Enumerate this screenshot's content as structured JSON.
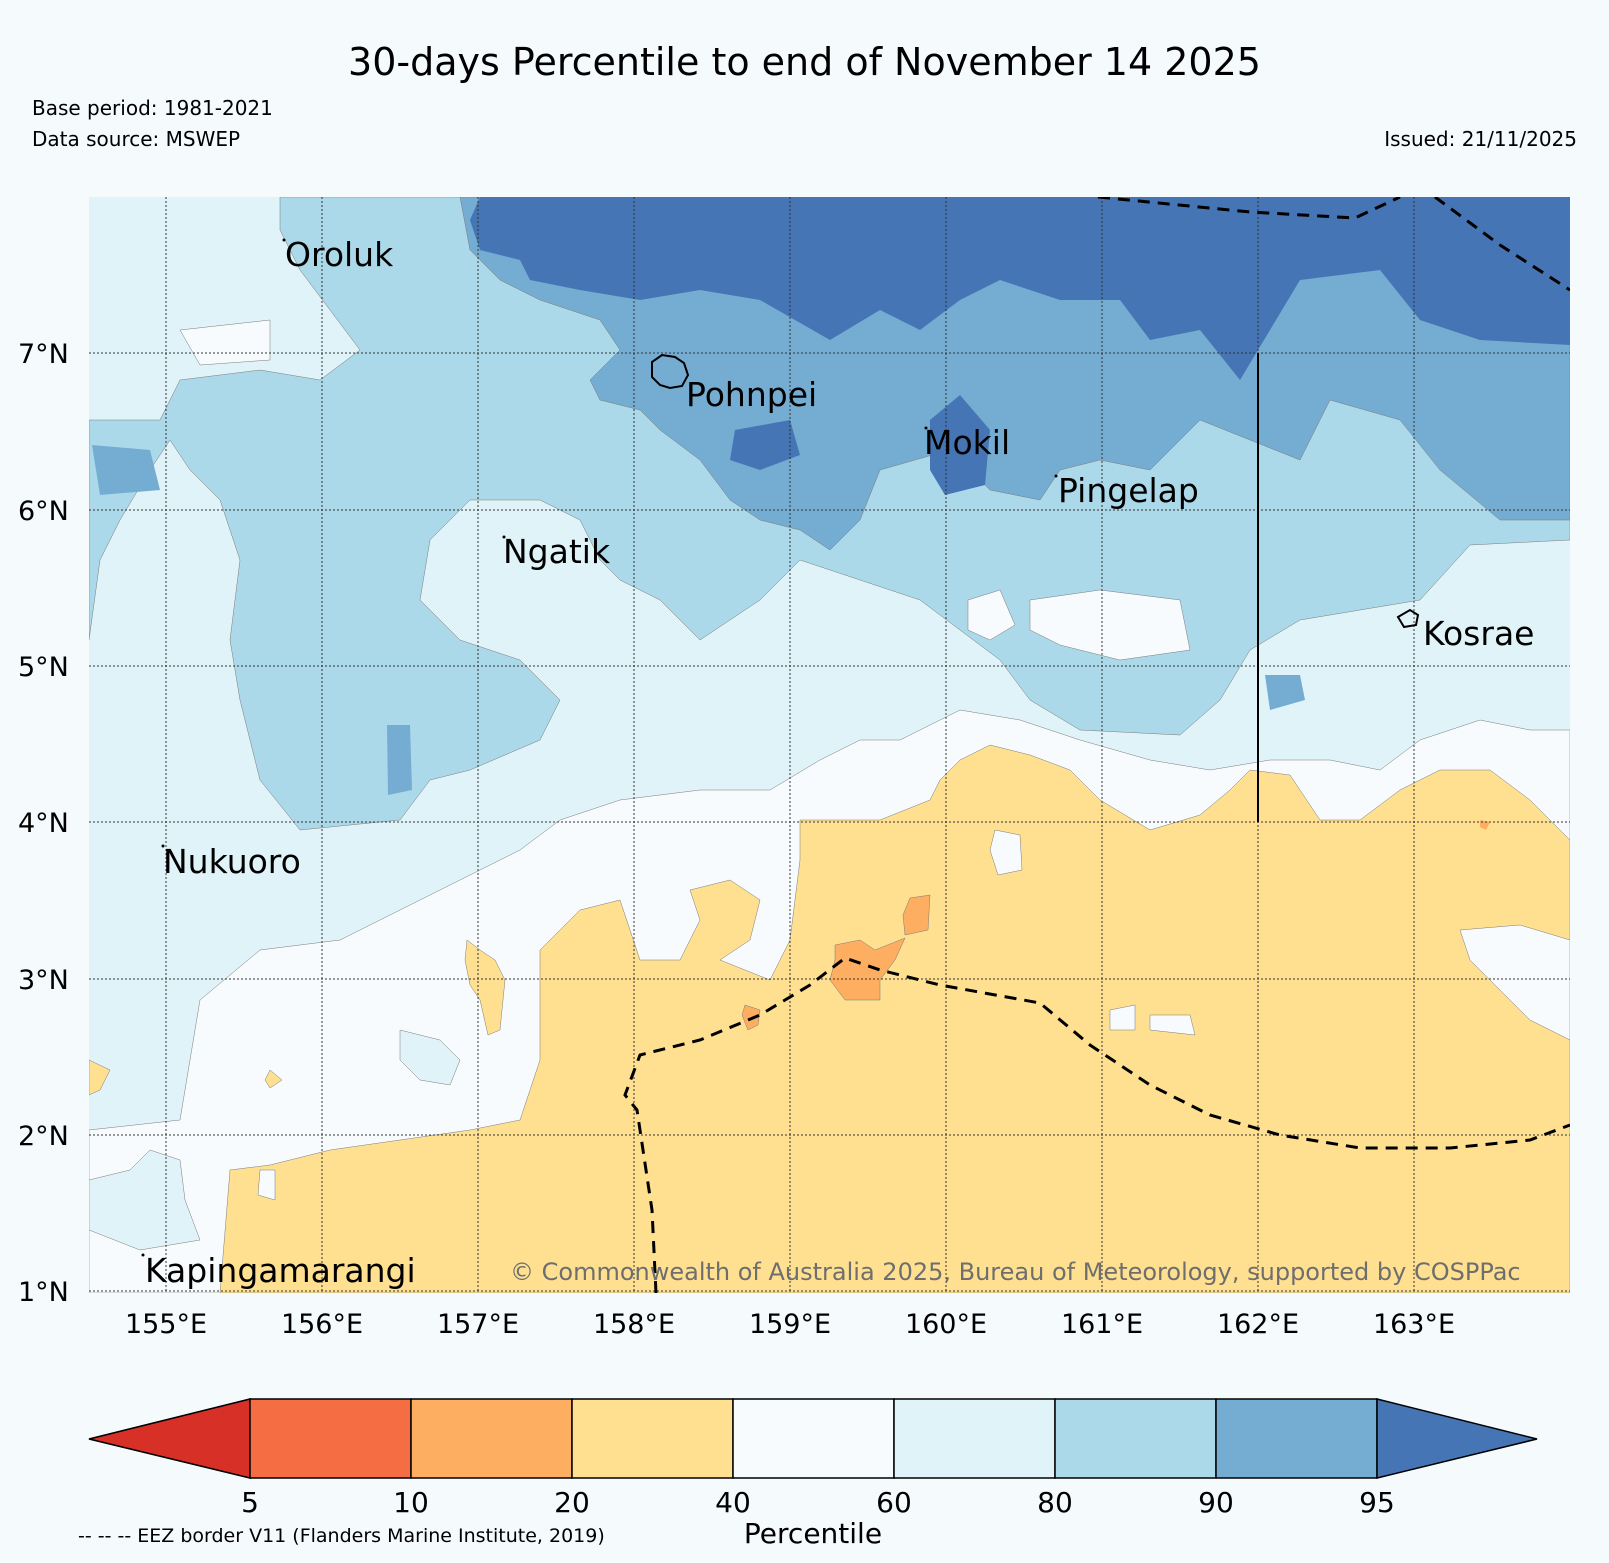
{
  "header": {
    "title": "30-days Percentile to end of November 14 2025",
    "base_period": "Base period: 1981-2021",
    "data_source": "Data source: MSWEP",
    "issued": "Issued: 21/11/2025"
  },
  "map": {
    "lat_labels": [
      "7°N",
      "6°N",
      "5°N",
      "4°N",
      "3°N",
      "2°N",
      "1°N"
    ],
    "lon_labels": [
      "155°E",
      "156°E",
      "157°E",
      "158°E",
      "159°E",
      "160°E",
      "161°E",
      "162°E",
      "163°E"
    ],
    "places": {
      "oroluk": "Oroluk",
      "pohnpei": "Pohnpei",
      "mokil": "Mokil",
      "pingelap": "Pingelap",
      "ngatik": "Ngatik",
      "kosrae": "Kosrae",
      "nukuoro": "Nukuoro",
      "kapingamarangi": "Kapingamarangi"
    },
    "copyright": "© Commonwealth of Australia 2025, Bureau of Meteorology, supported by COSPPac"
  },
  "colorbar": {
    "ticks": [
      "5",
      "10",
      "20",
      "40",
      "60",
      "80",
      "90",
      "95"
    ],
    "label": "Percentile",
    "colors": [
      "#d73027",
      "#f46d43",
      "#fdae61",
      "#fee090",
      "#f7fbfd",
      "#e0f3f8",
      "#abd9e9",
      "#74add1",
      "#4575b4"
    ]
  },
  "legend": {
    "eez": "-- -- -- EEZ border V11 (Flanders Marine Institute, 2019)"
  }
}
